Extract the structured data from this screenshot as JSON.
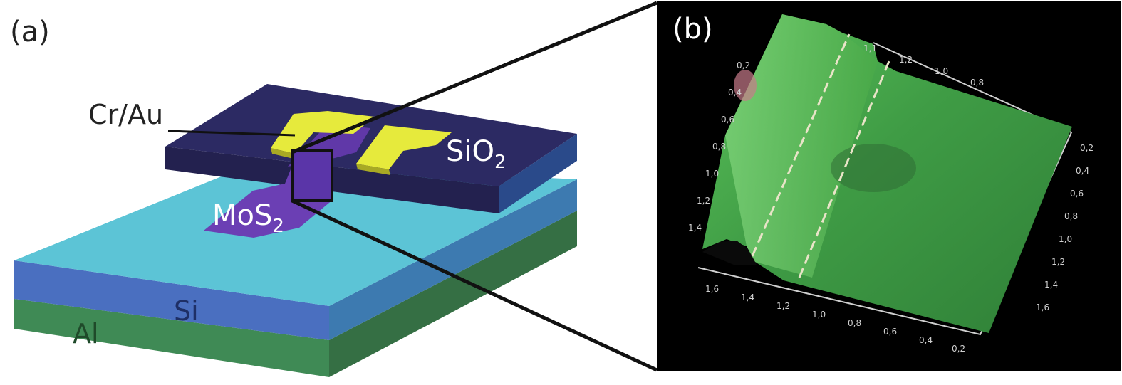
{
  "panel_a": {
    "label": "(a)",
    "layers": {
      "contact": "Cr/Au",
      "oxide_main": "SiO",
      "oxide_sub": "2",
      "flake_main": "MoS",
      "flake_sub": "2",
      "substrate": "Si",
      "back": "Al"
    }
  },
  "panel_b": {
    "label": "(b)",
    "axis_ticks_right": [
      "0,2",
      "0,4",
      "0,6",
      "0,8",
      "1,0",
      "1,2",
      "1,4",
      "1,6"
    ],
    "axis_ticks_bottom": [
      "1,6",
      "1,4",
      "1,2",
      "1,0",
      "0,8",
      "0,6",
      "0,4",
      "0,2"
    ],
    "axis_ticks_left": [
      "0,2",
      "0,4",
      "0,6",
      "0,8",
      "1,0",
      "1,2",
      "1,4"
    ],
    "axis_ticks_top": [
      "1,1",
      "1,2",
      "1,0",
      "0,8"
    ]
  },
  "colors": {
    "oxide": "#2c2a63",
    "silicon_top": "#5cc4d6",
    "silicon_side": "#4a6fc0",
    "aluminum": "#3f8a55",
    "contact": "#e6ea3c",
    "flake": "#6b3fb4",
    "afm_background": "#000000",
    "afm_surface": "#47a84a"
  }
}
